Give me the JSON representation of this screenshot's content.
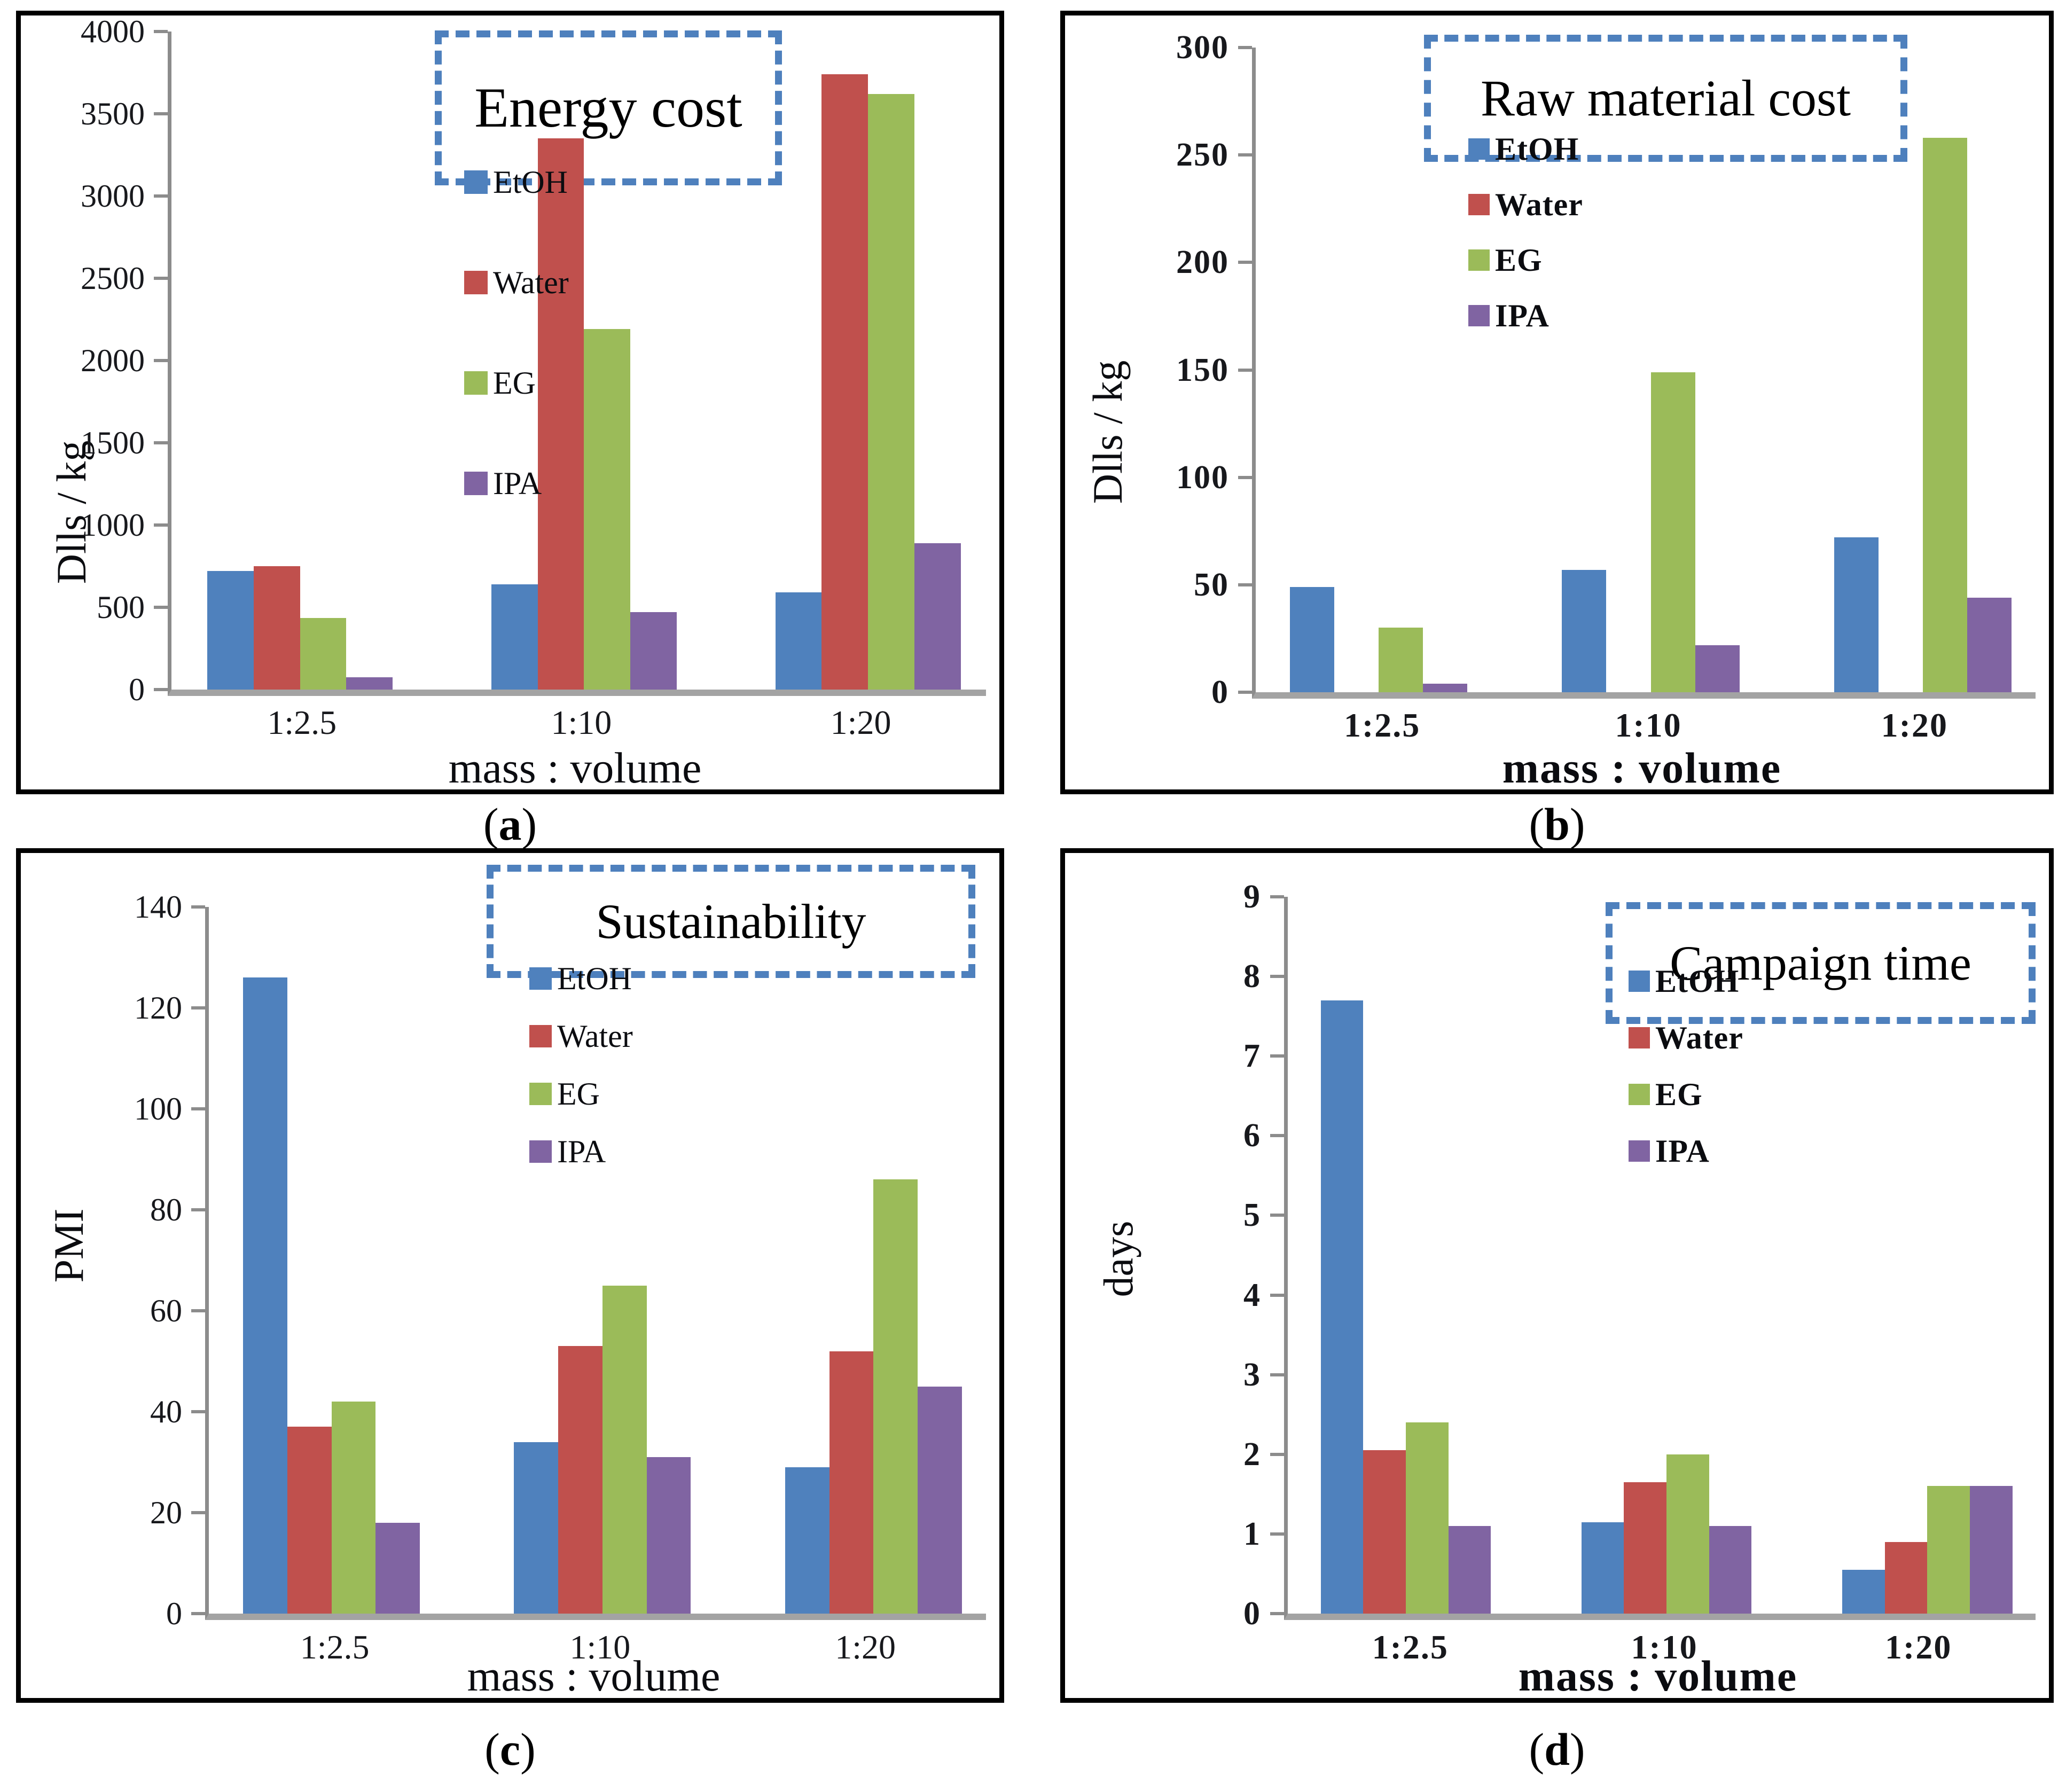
{
  "figure": {
    "background_color": "#ffffff",
    "panel_border_color": "#000000",
    "title_box_border_color": "#4e80bd",
    "axis_line_color": "#8c8c8c",
    "baseline_color": "#a3a3a3"
  },
  "chart_data": [
    {
      "type": "bar",
      "panel": "a",
      "caption": {
        "open": "(",
        "letter": "a",
        "close": ")"
      },
      "title": "Energy cost",
      "ylabel": "Dlls / kg",
      "xlabel": "mass : volume",
      "categories": [
        "1:2.5",
        "1:10",
        "1:20"
      ],
      "series": [
        {
          "name": "EtOH",
          "color": "#4f81bd",
          "values": [
            720,
            640,
            590
          ]
        },
        {
          "name": "Water",
          "color": "#c0504d",
          "values": [
            750,
            3350,
            3740
          ]
        },
        {
          "name": "EG",
          "color": "#9bbb59",
          "values": [
            435,
            2190,
            3620
          ]
        },
        {
          "name": "IPA",
          "color": "#8064a2",
          "values": [
            75,
            470,
            890
          ]
        }
      ],
      "ylim": [
        0,
        4000
      ],
      "y_step": 500,
      "y_ticks": [
        "0",
        "500",
        "1000",
        "1500",
        "2000",
        "2500",
        "3000",
        "3500",
        "4000"
      ],
      "grid": false,
      "legend_position": "upper-left-inside"
    },
    {
      "type": "bar",
      "panel": "b",
      "caption": {
        "open": "(",
        "letter": "b",
        "close": ")"
      },
      "title": "Raw material cost",
      "ylabel": "Dlls / kg",
      "xlabel": "mass : volume",
      "categories": [
        "1:2.5",
        "1:10",
        "1:20"
      ],
      "series": [
        {
          "name": "EtOH",
          "color": "#4f81bd",
          "values": [
            49,
            57,
            72
          ]
        },
        {
          "name": "Water",
          "color": "#c0504d",
          "values": [
            0,
            0,
            0
          ]
        },
        {
          "name": "EG",
          "color": "#9bbb59",
          "values": [
            30,
            149,
            258
          ]
        },
        {
          "name": "IPA",
          "color": "#8064a2",
          "values": [
            4,
            22,
            44
          ]
        }
      ],
      "ylim": [
        0,
        300
      ],
      "y_step": 50,
      "y_ticks": [
        "0",
        "50",
        "100",
        "150",
        "200",
        "250",
        "300"
      ],
      "grid": false,
      "legend_position": "upper-left-inside"
    },
    {
      "type": "bar",
      "panel": "c",
      "caption": {
        "open": "(",
        "letter": "c",
        "close": ")"
      },
      "title": "Sustainability",
      "ylabel": "PMI",
      "xlabel": "mass : volume",
      "categories": [
        "1:2.5",
        "1:10",
        "1:20"
      ],
      "series": [
        {
          "name": "EtOH",
          "color": "#4f81bd",
          "values": [
            126,
            34,
            29
          ]
        },
        {
          "name": "Water",
          "color": "#c0504d",
          "values": [
            37,
            53,
            52
          ]
        },
        {
          "name": "EG",
          "color": "#9bbb59",
          "values": [
            42,
            65,
            86
          ]
        },
        {
          "name": "IPA",
          "color": "#8064a2",
          "values": [
            18,
            31,
            45
          ]
        }
      ],
      "ylim": [
        0,
        140
      ],
      "y_step": 20,
      "y_ticks": [
        "0",
        "20",
        "40",
        "60",
        "80",
        "100",
        "120",
        "140"
      ],
      "grid": false,
      "legend_position": "upper-left-inside"
    },
    {
      "type": "bar",
      "panel": "d",
      "caption": {
        "open": "(",
        "letter": "d",
        "close": ")"
      },
      "title": "Campaign time",
      "ylabel": "days",
      "xlabel": "mass : volume",
      "categories": [
        "1:2.5",
        "1:10",
        "1:20"
      ],
      "series": [
        {
          "name": "EtOH",
          "color": "#4f81bd",
          "values": [
            7.7,
            1.15,
            0.55
          ]
        },
        {
          "name": "Water",
          "color": "#c0504d",
          "values": [
            2.05,
            1.65,
            0.9
          ]
        },
        {
          "name": "EG",
          "color": "#9bbb59",
          "values": [
            2.4,
            2.0,
            1.6
          ]
        },
        {
          "name": "IPA",
          "color": "#8064a2",
          "values": [
            1.1,
            1.1,
            1.6
          ]
        }
      ],
      "ylim": [
        0,
        9
      ],
      "y_step": 1,
      "y_ticks": [
        "0",
        "1",
        "2",
        "3",
        "4",
        "5",
        "6",
        "7",
        "8",
        "9"
      ],
      "grid": false,
      "legend_position": "upper-left-inside"
    }
  ]
}
